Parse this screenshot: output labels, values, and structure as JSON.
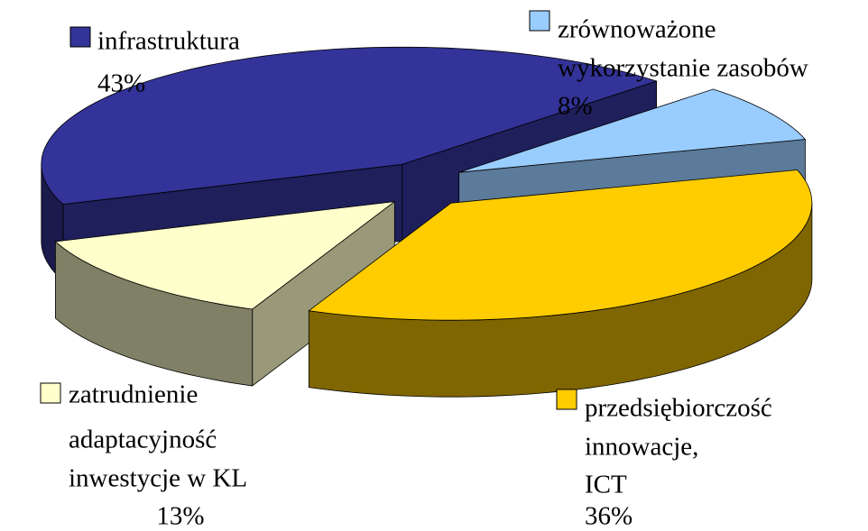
{
  "chart_data": {
    "type": "pie3d",
    "categories": [
      [
        "infrastruktura"
      ],
      [
        "zrównoważone",
        "wykorzystanie zasobów"
      ],
      [
        "przedsiębiorczość",
        "innowacje,",
        "ICT"
      ],
      [
        "zatrudnienie",
        "adaptacyjność",
        "inwestycje w KL"
      ]
    ],
    "values": [
      43,
      8,
      36,
      13
    ],
    "value_labels": [
      "43%",
      "8%",
      "36%",
      "13%"
    ],
    "colors": [
      "#333399",
      "#99ccff",
      "#ffcc00",
      "#ffffcc"
    ]
  }
}
